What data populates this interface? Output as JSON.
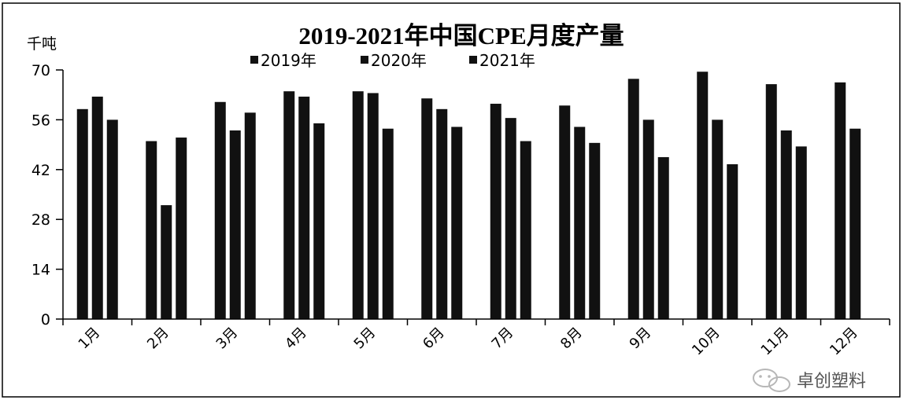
{
  "chart_data": {
    "type": "bar",
    "title": "2019-2021年中国CPE月度产量",
    "ylabel": "千吨",
    "xlabel": "",
    "categories": [
      "1月",
      "2月",
      "3月",
      "4月",
      "5月",
      "6月",
      "7月",
      "8月",
      "9月",
      "10月",
      "11月",
      "12月"
    ],
    "series": [
      {
        "name": "2019年",
        "values": [
          59,
          50,
          61,
          64,
          64,
          62,
          60.5,
          60,
          67.5,
          69.5,
          66,
          66.5
        ]
      },
      {
        "name": "2020年",
        "values": [
          62.5,
          32,
          53,
          62.5,
          63.5,
          59,
          56.5,
          54,
          56,
          56,
          53,
          53.5
        ]
      },
      {
        "name": "2021年",
        "values": [
          56,
          51,
          58,
          55,
          53.5,
          54,
          50,
          49.5,
          45.5,
          43.5,
          48.5,
          null
        ]
      }
    ],
    "ylim": [
      0,
      70
    ],
    "yticks": [
      0,
      14,
      28,
      42,
      56,
      70
    ],
    "legend": "top-center",
    "grid": false
  },
  "colors": {
    "bars": "#111111",
    "axis": "#000000",
    "watermark": "#777777"
  },
  "watermark": {
    "icon": "wechat-icon",
    "text": "卓创塑料"
  }
}
